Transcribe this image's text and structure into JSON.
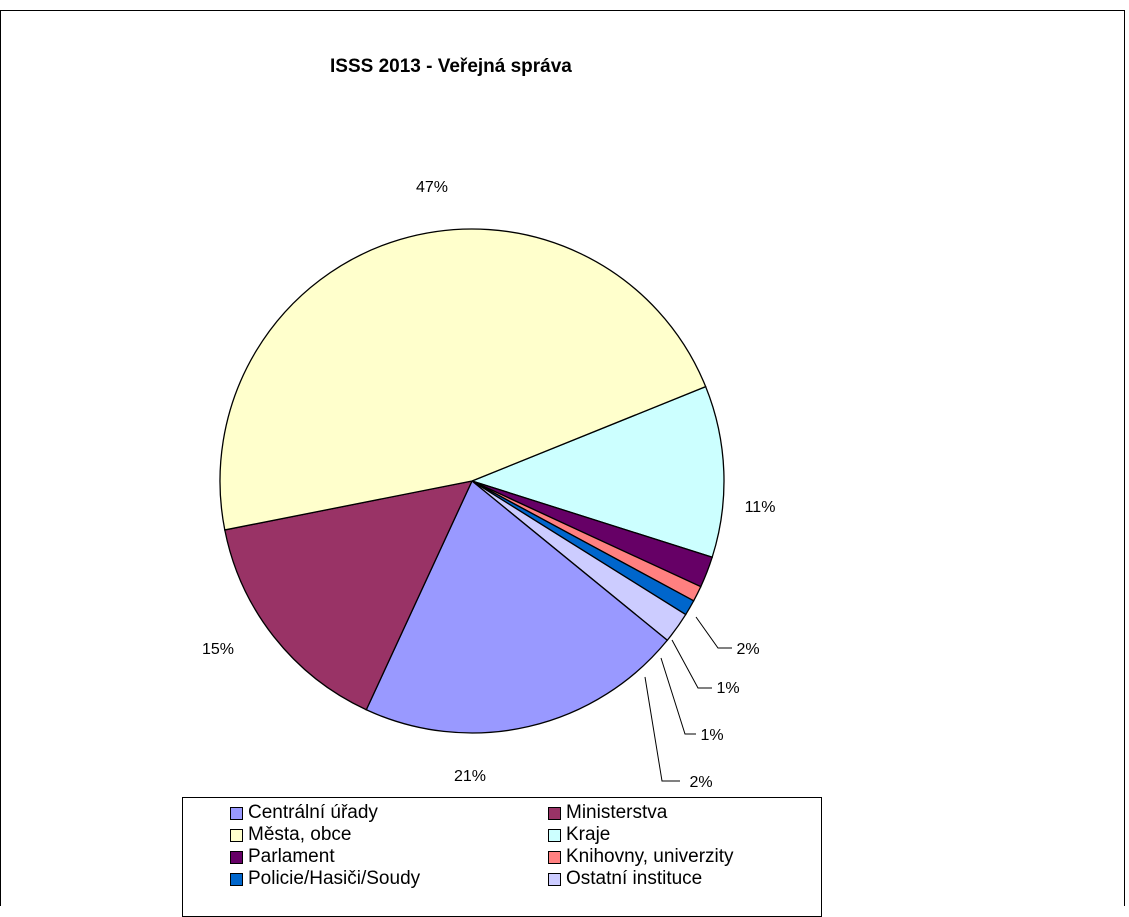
{
  "chart_data": {
    "type": "pie",
    "title": "ISSS 2013 - Veřejná správa",
    "slices": [
      {
        "name": "Kraje",
        "value": 11,
        "label": "11%",
        "color": "#CCFFFF"
      },
      {
        "name": "Parlament",
        "value": 2,
        "label": "2%",
        "color": "#660066"
      },
      {
        "name": "Knihovny, univerzity",
        "value": 1,
        "label": "1%",
        "color": "#FF8080"
      },
      {
        "name": "Policie/Hasiči/Soudy",
        "value": 1,
        "label": "1%",
        "color": "#0066CC"
      },
      {
        "name": "Ostatní instituce",
        "value": 2,
        "label": "2%",
        "color": "#CCCCFF"
      },
      {
        "name": "Centrální úřady",
        "value": 21,
        "label": "21%",
        "color": "#9999FF"
      },
      {
        "name": "Ministerstva",
        "value": 15,
        "label": "15%",
        "color": "#993366"
      },
      {
        "name": "Města, obce",
        "value": 47,
        "label": "47%",
        "color": "#FFFFCC"
      }
    ],
    "legend": [
      {
        "name": "Centrální úřady",
        "color": "#9999FF"
      },
      {
        "name": "Ministerstva",
        "color": "#993366"
      },
      {
        "name": "Města, obce",
        "color": "#FFFFCC"
      },
      {
        "name": "Kraje",
        "color": "#CCFFFF"
      },
      {
        "name": "Parlament",
        "color": "#660066"
      },
      {
        "name": "Knihovny, univerzity",
        "color": "#FF8080"
      },
      {
        "name": "Policie/Hasiči/Soudy",
        "color": "#0066CC"
      },
      {
        "name": "Ostatní instituce",
        "color": "#CCCCFF"
      }
    ],
    "legend_position": "bottom"
  }
}
